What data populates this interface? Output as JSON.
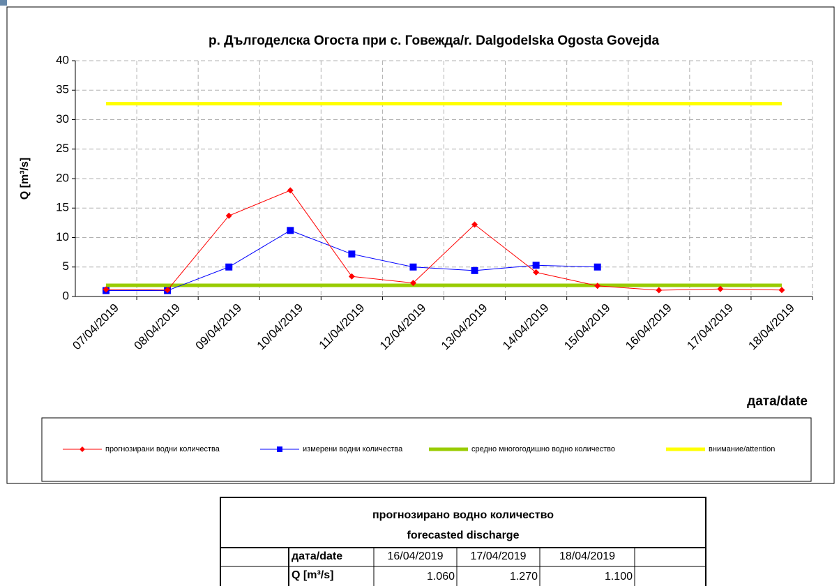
{
  "chart_data": {
    "type": "line",
    "title": "р. Дългоделска Огоста при с. Говежда/r. Dalgodelska Ogosta Govejda",
    "ylabel": "Q [m³/s]",
    "xlabel": "дата/date",
    "categories": [
      "07/04/2019",
      "08/04/2019",
      "09/04/2019",
      "10/04/2019",
      "11/04/2019",
      "12/04/2019",
      "13/04/2019",
      "14/04/2019",
      "15/04/2019",
      "16/04/2019",
      "17/04/2019",
      "18/04/2019"
    ],
    "series": [
      {
        "name": "прогнозирани водни количества",
        "color": "#ff0000",
        "marker": "diamond",
        "width": 1,
        "values": [
          1.2,
          1.1,
          13.7,
          18.0,
          3.4,
          2.3,
          12.2,
          4.1,
          1.8,
          1.06,
          1.27,
          1.1
        ]
      },
      {
        "name": "измерени водни количества",
        "color": "#0000ff",
        "marker": "square",
        "width": 1,
        "values": [
          1.0,
          1.0,
          5.0,
          11.2,
          7.2,
          5.0,
          4.4,
          5.3,
          5.0,
          null,
          null,
          null
        ]
      },
      {
        "name": "средно многогодишно водно количество",
        "color": "#99cc00",
        "marker": null,
        "width": 5,
        "values": [
          1.9,
          1.9,
          1.9,
          1.9,
          1.9,
          1.9,
          1.9,
          1.9,
          1.9,
          1.9,
          1.9,
          1.9
        ]
      },
      {
        "name": "внимание/attention",
        "color": "#ffff00",
        "marker": null,
        "width": 5,
        "values": [
          32.7,
          32.7,
          32.7,
          32.7,
          32.7,
          32.7,
          32.7,
          32.7,
          32.7,
          32.7,
          32.7,
          32.7
        ]
      }
    ],
    "ylim": [
      0,
      40
    ],
    "yticks": [
      0,
      5,
      10,
      15,
      20,
      25,
      30,
      35,
      40
    ],
    "grid": true,
    "legend": "bottom"
  },
  "table": {
    "title": [
      "прогнозирано водно количество",
      "forecasted discharge"
    ],
    "rows": [
      [
        "дата/date",
        "16/04/2019",
        "17/04/2019",
        "18/04/2019"
      ],
      [
        "Q [m³/s]",
        "1.060",
        "1.270",
        "1.100"
      ]
    ]
  }
}
